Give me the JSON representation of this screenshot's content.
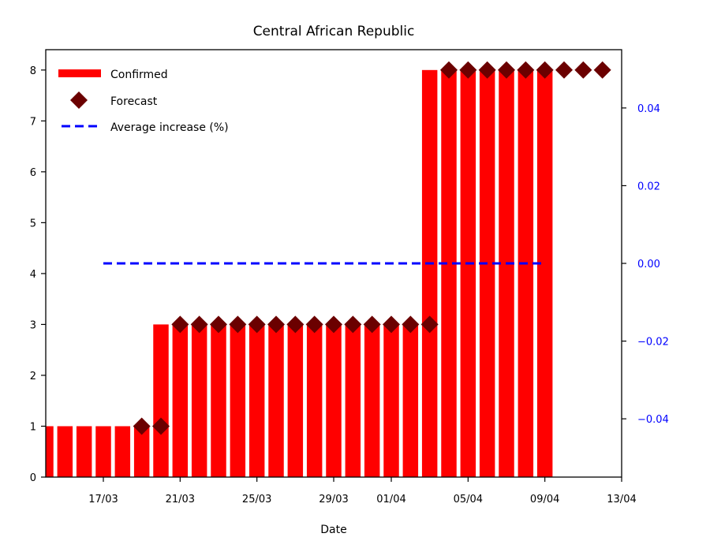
{
  "chart_data": {
    "type": "bar",
    "title": "Central African Republic",
    "xlabel": "Date",
    "ylabel": "",
    "ylim": [
      0,
      8.4
    ],
    "yticks": [
      0,
      1,
      2,
      3,
      4,
      5,
      6,
      7,
      8
    ],
    "y2lim": [
      -0.055,
      0.055
    ],
    "y2ticks": [
      -0.04,
      -0.02,
      0.0,
      0.02,
      0.04
    ],
    "y2tick_labels": [
      "−0.04",
      "−0.02",
      "0.00",
      "0.02",
      "0.04"
    ],
    "xlim": [
      "2020-03-14",
      "2020-04-13"
    ],
    "xticks": [
      "2020-03-17",
      "2020-03-21",
      "2020-03-25",
      "2020-03-29",
      "2020-04-01",
      "2020-04-05",
      "2020-04-09",
      "2020-04-13"
    ],
    "xtick_labels": [
      "17/03",
      "21/03",
      "25/03",
      "29/03",
      "01/04",
      "05/04",
      "09/04",
      "13/04"
    ],
    "legend_position": "top-left",
    "series": [
      {
        "name": "Confirmed",
        "kind": "bar",
        "color": "#ff0000",
        "x": [
          "2020-03-14",
          "2020-03-15",
          "2020-03-16",
          "2020-03-17",
          "2020-03-18",
          "2020-03-19",
          "2020-03-20",
          "2020-03-21",
          "2020-03-22",
          "2020-03-23",
          "2020-03-24",
          "2020-03-25",
          "2020-03-26",
          "2020-03-27",
          "2020-03-28",
          "2020-03-29",
          "2020-03-30",
          "2020-03-31",
          "2020-04-01",
          "2020-04-02",
          "2020-04-03",
          "2020-04-04",
          "2020-04-05",
          "2020-04-06",
          "2020-04-07",
          "2020-04-08",
          "2020-04-09"
        ],
        "values": [
          1,
          1,
          1,
          1,
          1,
          1,
          3,
          3,
          3,
          3,
          3,
          3,
          3,
          3,
          3,
          3,
          3,
          3,
          3,
          3,
          8,
          8,
          8,
          8,
          8,
          8,
          8
        ]
      },
      {
        "name": "Forecast",
        "kind": "scatter",
        "marker": "diamond",
        "color": "#6b0000",
        "x": [
          "2020-03-19",
          "2020-03-20",
          "2020-03-21",
          "2020-03-22",
          "2020-03-23",
          "2020-03-24",
          "2020-03-25",
          "2020-03-26",
          "2020-03-27",
          "2020-03-28",
          "2020-03-29",
          "2020-03-30",
          "2020-03-31",
          "2020-04-01",
          "2020-04-02",
          "2020-04-03",
          "2020-04-04",
          "2020-04-05",
          "2020-04-06",
          "2020-04-07",
          "2020-04-08",
          "2020-04-09",
          "2020-04-10",
          "2020-04-11",
          "2020-04-12"
        ],
        "values": [
          1,
          1,
          3,
          3,
          3,
          3,
          3,
          3,
          3,
          3,
          3,
          3,
          3,
          3,
          3,
          3,
          8,
          8,
          8,
          8,
          8,
          8,
          8,
          8,
          8
        ]
      },
      {
        "name": "Average increase (%)",
        "kind": "line",
        "axis": "right",
        "style": "dashed",
        "color": "#0000ff",
        "x": [
          "2020-03-17",
          "2020-04-09"
        ],
        "values": [
          0.0,
          0.0
        ]
      }
    ]
  }
}
